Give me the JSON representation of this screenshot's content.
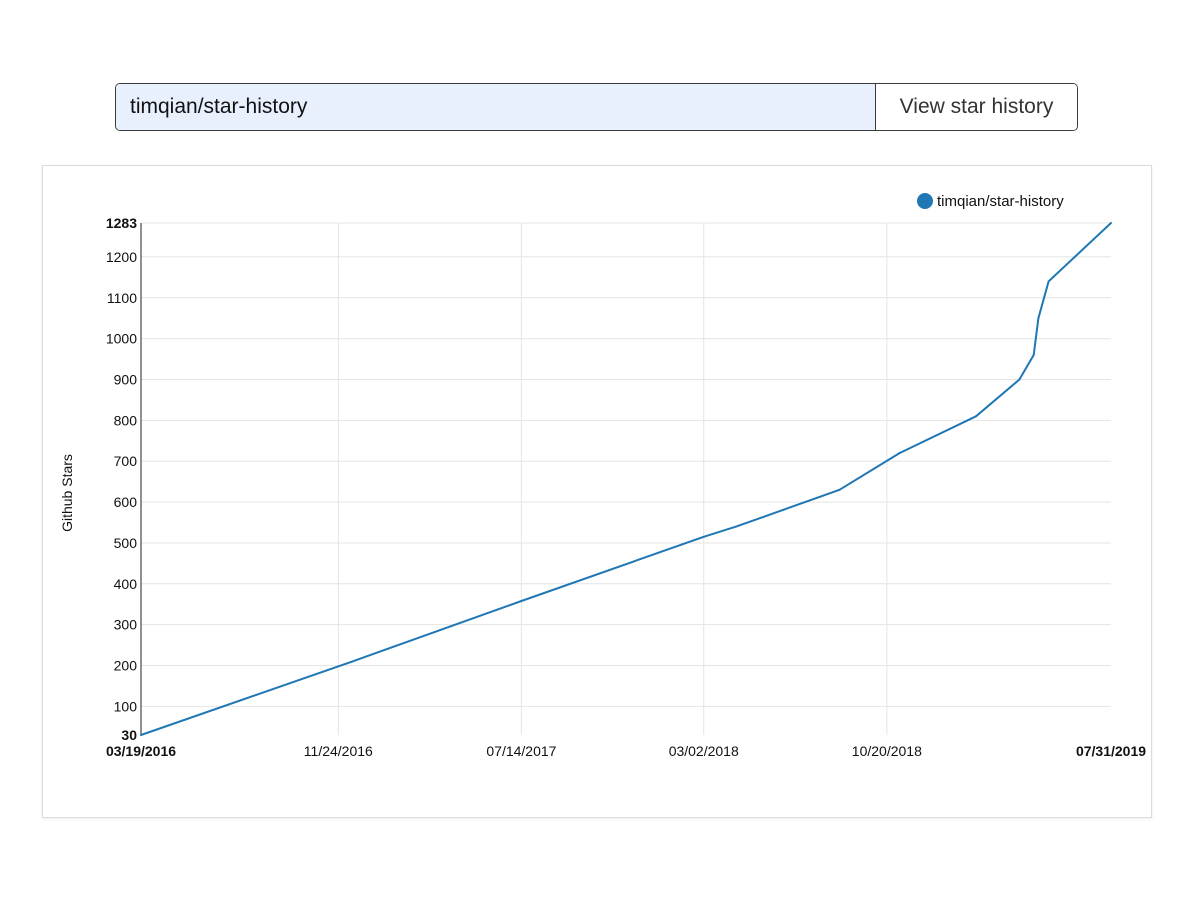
{
  "search": {
    "value": "timqian/star-history",
    "button_label": "View star history"
  },
  "colors": {
    "series": "#1f77b4",
    "input_background": "#e8f0fe",
    "grid": "#e4e4e4"
  },
  "chart_data": {
    "type": "line",
    "title": "",
    "xlabel": "",
    "ylabel": "Github Stars",
    "x_axis_type": "date",
    "xlim": [
      "2016-03-19",
      "2019-07-31"
    ],
    "ylim": [
      30,
      1283
    ],
    "x_ticks": [
      {
        "date": "2016-03-19",
        "label": "03/19/2016",
        "bold": true
      },
      {
        "date": "2016-11-24",
        "label": "11/24/2016",
        "bold": false
      },
      {
        "date": "2017-07-14",
        "label": "07/14/2017",
        "bold": false
      },
      {
        "date": "2018-03-02",
        "label": "03/02/2018",
        "bold": false
      },
      {
        "date": "2018-10-20",
        "label": "10/20/2018",
        "bold": false
      },
      {
        "date": "2019-07-31",
        "label": "07/31/2019",
        "bold": true
      }
    ],
    "y_ticks": [
      {
        "value": 30,
        "label": "30",
        "bold": true
      },
      {
        "value": 100,
        "label": "100",
        "bold": false
      },
      {
        "value": 200,
        "label": "200",
        "bold": false
      },
      {
        "value": 300,
        "label": "300",
        "bold": false
      },
      {
        "value": 400,
        "label": "400",
        "bold": false
      },
      {
        "value": 500,
        "label": "500",
        "bold": false
      },
      {
        "value": 600,
        "label": "600",
        "bold": false
      },
      {
        "value": 700,
        "label": "700",
        "bold": false
      },
      {
        "value": 800,
        "label": "800",
        "bold": false
      },
      {
        "value": 900,
        "label": "900",
        "bold": false
      },
      {
        "value": 1000,
        "label": "1000",
        "bold": false
      },
      {
        "value": 1100,
        "label": "1100",
        "bold": false
      },
      {
        "value": 1200,
        "label": "1200",
        "bold": false
      },
      {
        "value": 1283,
        "label": "1283",
        "bold": true
      }
    ],
    "grid": true,
    "legend_position": "top-right",
    "series": [
      {
        "name": "timqian/star-history",
        "color": "#1f77b4",
        "points": [
          {
            "x": "2016-03-19",
            "y": 30
          },
          {
            "x": "2016-12-12",
            "y": 210
          },
          {
            "x": "2017-07-14",
            "y": 358
          },
          {
            "x": "2018-03-02",
            "y": 515
          },
          {
            "x": "2018-04-12",
            "y": 540
          },
          {
            "x": "2018-08-21",
            "y": 630
          },
          {
            "x": "2018-11-05",
            "y": 720
          },
          {
            "x": "2019-02-10",
            "y": 810
          },
          {
            "x": "2019-04-06",
            "y": 900
          },
          {
            "x": "2019-04-24",
            "y": 960
          },
          {
            "x": "2019-04-30",
            "y": 1050
          },
          {
            "x": "2019-05-13",
            "y": 1140
          },
          {
            "x": "2019-07-31",
            "y": 1283
          }
        ]
      }
    ]
  }
}
